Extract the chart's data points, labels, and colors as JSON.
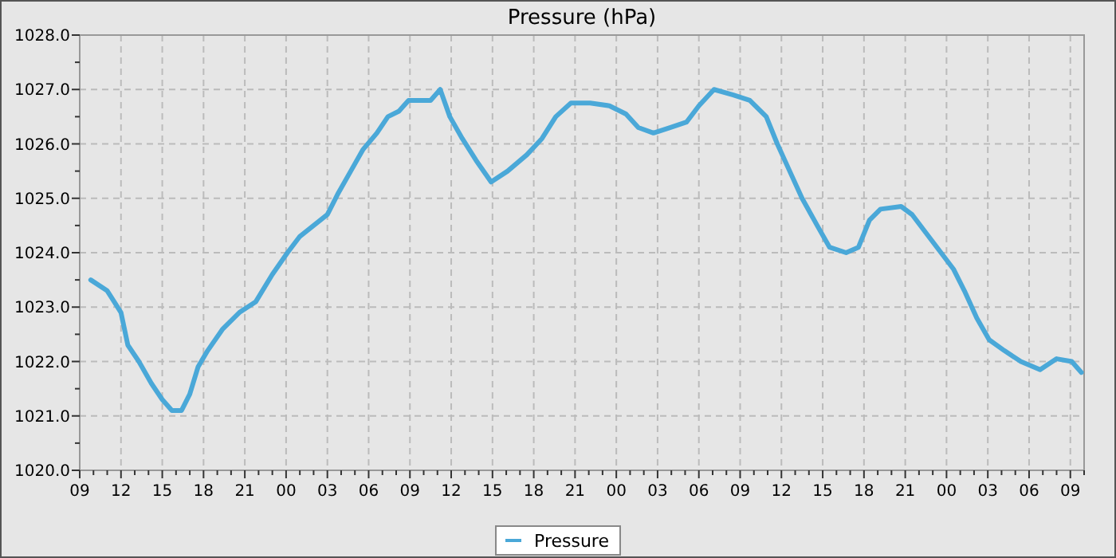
{
  "chart_data": {
    "type": "line",
    "title": "Pressure (hPa)",
    "xlim": [
      9,
      82
    ],
    "ylim": [
      1020,
      1028
    ],
    "xticks": [
      {
        "value": 9,
        "label": "09"
      },
      {
        "value": 10,
        "label": null
      },
      {
        "value": 11,
        "label": null
      },
      {
        "value": 12,
        "label": "12"
      },
      {
        "value": 13,
        "label": null
      },
      {
        "value": 14,
        "label": null
      },
      {
        "value": 15,
        "label": "15"
      },
      {
        "value": 16,
        "label": null
      },
      {
        "value": 17,
        "label": null
      },
      {
        "value": 18,
        "label": "18"
      },
      {
        "value": 19,
        "label": null
      },
      {
        "value": 20,
        "label": null
      },
      {
        "value": 21,
        "label": "21"
      },
      {
        "value": 22,
        "label": null
      },
      {
        "value": 23,
        "label": null
      },
      {
        "value": 24,
        "label": "00"
      },
      {
        "value": 25,
        "label": null
      },
      {
        "value": 26,
        "label": null
      },
      {
        "value": 27,
        "label": "03"
      },
      {
        "value": 28,
        "label": null
      },
      {
        "value": 29,
        "label": null
      },
      {
        "value": 30,
        "label": "06"
      },
      {
        "value": 31,
        "label": null
      },
      {
        "value": 32,
        "label": null
      },
      {
        "value": 33,
        "label": "09"
      },
      {
        "value": 34,
        "label": null
      },
      {
        "value": 35,
        "label": null
      },
      {
        "value": 36,
        "label": "12"
      },
      {
        "value": 37,
        "label": null
      },
      {
        "value": 38,
        "label": null
      },
      {
        "value": 39,
        "label": "15"
      },
      {
        "value": 40,
        "label": null
      },
      {
        "value": 41,
        "label": null
      },
      {
        "value": 42,
        "label": "18"
      },
      {
        "value": 43,
        "label": null
      },
      {
        "value": 44,
        "label": null
      },
      {
        "value": 45,
        "label": "21"
      },
      {
        "value": 46,
        "label": null
      },
      {
        "value": 47,
        "label": null
      },
      {
        "value": 48,
        "label": "00"
      },
      {
        "value": 49,
        "label": null
      },
      {
        "value": 50,
        "label": null
      },
      {
        "value": 51,
        "label": "03"
      },
      {
        "value": 52,
        "label": null
      },
      {
        "value": 53,
        "label": null
      },
      {
        "value": 54,
        "label": "06"
      },
      {
        "value": 55,
        "label": null
      },
      {
        "value": 56,
        "label": null
      },
      {
        "value": 57,
        "label": "09"
      },
      {
        "value": 58,
        "label": null
      },
      {
        "value": 59,
        "label": null
      },
      {
        "value": 60,
        "label": "12"
      },
      {
        "value": 61,
        "label": null
      },
      {
        "value": 62,
        "label": null
      },
      {
        "value": 63,
        "label": "15"
      },
      {
        "value": 64,
        "label": null
      },
      {
        "value": 65,
        "label": null
      },
      {
        "value": 66,
        "label": "18"
      },
      {
        "value": 67,
        "label": null
      },
      {
        "value": 68,
        "label": null
      },
      {
        "value": 69,
        "label": "21"
      },
      {
        "value": 70,
        "label": null
      },
      {
        "value": 71,
        "label": null
      },
      {
        "value": 72,
        "label": "00"
      },
      {
        "value": 73,
        "label": null
      },
      {
        "value": 74,
        "label": null
      },
      {
        "value": 75,
        "label": "03"
      },
      {
        "value": 76,
        "label": null
      },
      {
        "value": 77,
        "label": null
      },
      {
        "value": 78,
        "label": "06"
      },
      {
        "value": 79,
        "label": null
      },
      {
        "value": 80,
        "label": null
      },
      {
        "value": 81,
        "label": "09"
      },
      {
        "value": 82,
        "label": null
      }
    ],
    "yticks": [
      {
        "value": 1020,
        "label": "1020.0"
      },
      {
        "value": 1020.5,
        "label": null
      },
      {
        "value": 1021,
        "label": "1021.0"
      },
      {
        "value": 1021.5,
        "label": null
      },
      {
        "value": 1022,
        "label": "1022.0"
      },
      {
        "value": 1022.5,
        "label": null
      },
      {
        "value": 1023,
        "label": "1023.0"
      },
      {
        "value": 1023.5,
        "label": null
      },
      {
        "value": 1024,
        "label": "1024.0"
      },
      {
        "value": 1024.5,
        "label": null
      },
      {
        "value": 1025,
        "label": "1025.0"
      },
      {
        "value": 1025.5,
        "label": null
      },
      {
        "value": 1026,
        "label": "1026.0"
      },
      {
        "value": 1026.5,
        "label": null
      },
      {
        "value": 1027,
        "label": "1027.0"
      },
      {
        "value": 1027.5,
        "label": null
      },
      {
        "value": 1028,
        "label": "1028.0"
      }
    ],
    "grid": true,
    "legend": "bottom",
    "line_style": "solid",
    "marker": "none",
    "series": [
      {
        "name": "Pressure",
        "color": "#4aa8d8",
        "x": [
          9.8,
          11,
          11.5,
          12,
          12.5,
          13.3,
          14.2,
          15,
          15.7,
          16.4,
          17,
          17.6,
          18.3,
          19.4,
          20.6,
          21.8,
          23,
          24.1,
          25,
          26,
          27,
          27.8,
          28.7,
          29.6,
          30.6,
          31.4,
          32.2,
          32.9,
          33.6,
          34.5,
          35.2,
          35.9,
          36.8,
          37.8,
          38.9,
          40.1,
          41.5,
          42.6,
          43.6,
          44.7,
          46.1,
          47.5,
          48.7,
          49.6,
          50.7,
          51.9,
          53.1,
          54,
          55.1,
          56.5,
          57.7,
          58.9,
          59.7,
          60.6,
          61.5,
          62.6,
          63.5,
          64.7,
          65.6,
          66.4,
          67.2,
          68.7,
          69.5,
          70.4,
          71.6,
          72.5,
          73.3,
          74.2,
          75.1,
          76.2,
          77.4,
          78.8,
          80,
          81.1,
          81.8
        ],
        "values": [
          1023.5,
          1023.3,
          1023.1,
          1022.9,
          1022.3,
          1022.0,
          1021.6,
          1021.3,
          1021.1,
          1021.1,
          1021.4,
          1021.9,
          1022.2,
          1022.6,
          1022.9,
          1023.1,
          1023.6,
          1024.0,
          1024.3,
          1024.5,
          1024.7,
          1025.1,
          1025.5,
          1025.9,
          1026.2,
          1026.5,
          1026.6,
          1026.8,
          1026.8,
          1026.8,
          1027.0,
          1026.5,
          1026.1,
          1025.7,
          1025.3,
          1025.5,
          1025.8,
          1026.1,
          1026.5,
          1026.75,
          1026.75,
          1026.7,
          1026.55,
          1026.3,
          1026.2,
          1026.3,
          1026.4,
          1026.7,
          1027.0,
          1026.9,
          1026.8,
          1026.5,
          1026.0,
          1025.5,
          1025.0,
          1024.5,
          1024.1,
          1024.0,
          1024.1,
          1024.6,
          1024.8,
          1024.85,
          1024.7,
          1024.4,
          1024.0,
          1023.7,
          1023.3,
          1022.8,
          1022.4,
          1022.2,
          1022.0,
          1021.85,
          1022.05,
          1022.0,
          1021.8
        ]
      }
    ]
  }
}
